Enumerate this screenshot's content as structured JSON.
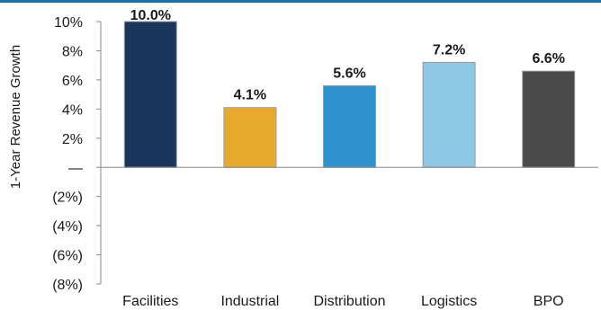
{
  "chart_data": {
    "type": "bar",
    "title": "",
    "xlabel": "",
    "ylabel": "1-Year Revenue Growth",
    "ylim": [
      -8,
      10
    ],
    "yticks": [
      10,
      8,
      6,
      4,
      2,
      0,
      -2,
      -4,
      -6,
      -8
    ],
    "ytick_labels": [
      "10%",
      "8%",
      "6%",
      "4%",
      "2%",
      "—",
      "(2%)",
      "(4%)",
      "(6%)",
      "(8%)"
    ],
    "categories": [
      "Facilities",
      "Industrial",
      "Distribution",
      "Logistics",
      "BPO"
    ],
    "values": [
      10.0,
      4.1,
      5.6,
      7.2,
      6.6
    ],
    "data_labels": [
      "10.0%",
      "4.1%",
      "5.6%",
      "7.2%",
      "6.6%"
    ],
    "colors": [
      "#1b365d",
      "#e8a92c",
      "#2e92cf",
      "#8ec6e6",
      "#4a4a4a"
    ],
    "grid": false,
    "legend": "none"
  }
}
